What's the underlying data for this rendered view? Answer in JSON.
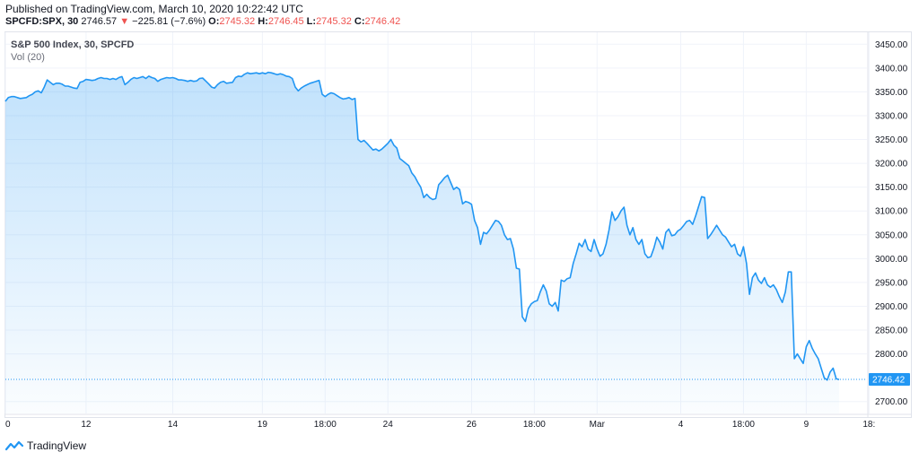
{
  "header": {
    "published": "Published on TradingView.com, March 10, 2020 10:22:42 UTC"
  },
  "quote": {
    "symbol": "SPCFD:SPX, 30",
    "last": "2746.57",
    "change": "−225.81 (−7.6%)",
    "o_label": "O:",
    "o_val": "2745.32",
    "h_label": "H:",
    "h_val": "2746.45",
    "l_label": "L:",
    "l_val": "2745.32",
    "c_label": "C:",
    "c_val": "2746.42"
  },
  "legend": {
    "title": "S&P 500 Index, 30, SPCFD",
    "vol": "Vol (20)"
  },
  "footer": {
    "brand": "TradingView"
  },
  "colors": {
    "line": "#2196f3",
    "down": "#ef5350",
    "price_tag": "#2196f3"
  },
  "chart_data": {
    "type": "area",
    "ylim": [
      2675,
      3475
    ],
    "y_ticks": [
      3450,
      3400,
      3350,
      3300,
      3250,
      3200,
      3150,
      3100,
      3050,
      3000,
      2950,
      2900,
      2850,
      2800,
      2700
    ],
    "x_ticks": [
      {
        "label": "0",
        "index": 0
      },
      {
        "label": "12",
        "index": 27
      },
      {
        "label": "14",
        "index": 56
      },
      {
        "label": "19",
        "index": 86
      },
      {
        "label": "18:00",
        "index": 107
      },
      {
        "label": "24",
        "index": 128
      },
      {
        "label": "26",
        "index": 156
      },
      {
        "label": "18:00",
        "index": 177
      },
      {
        "label": "Mar",
        "index": 198
      },
      {
        "label": "4",
        "index": 226
      },
      {
        "label": "18:00",
        "index": 247
      },
      {
        "label": "9",
        "index": 268
      },
      {
        "label": "18:",
        "index": 289
      }
    ],
    "last_price_label": "2746.42",
    "last_price": 2746.42,
    "series": [
      {
        "values": [
          3330,
          3338,
          3340,
          3340,
          3338,
          3336,
          3337,
          3338,
          3342,
          3345,
          3350,
          3352,
          3348,
          3360,
          3375,
          3370,
          3365,
          3368,
          3368,
          3366,
          3362,
          3362,
          3360,
          3358,
          3357,
          3370,
          3372,
          3376,
          3375,
          3374,
          3375,
          3378,
          3380,
          3378,
          3378,
          3376,
          3378,
          3376,
          3380,
          3382,
          3365,
          3370,
          3376,
          3380,
          3378,
          3380,
          3382,
          3378,
          3383,
          3380,
          3378,
          3372,
          3376,
          3378,
          3380,
          3379,
          3380,
          3378,
          3375,
          3375,
          3374,
          3372,
          3374,
          3372,
          3373,
          3378,
          3379,
          3373,
          3367,
          3360,
          3358,
          3365,
          3370,
          3372,
          3368,
          3369,
          3370,
          3380,
          3383,
          3382,
          3387,
          3390,
          3388,
          3389,
          3390,
          3388,
          3390,
          3388,
          3391,
          3390,
          3388,
          3386,
          3388,
          3386,
          3383,
          3382,
          3378,
          3360,
          3352,
          3358,
          3362,
          3365,
          3368,
          3370,
          3372,
          3374,
          3345,
          3340,
          3345,
          3348,
          3346,
          3342,
          3338,
          3335,
          3336,
          3338,
          3334,
          3336,
          3250,
          3245,
          3248,
          3242,
          3235,
          3228,
          3230,
          3226,
          3230,
          3236,
          3242,
          3250,
          3238,
          3232,
          3210,
          3205,
          3200,
          3195,
          3180,
          3172,
          3160,
          3150,
          3128,
          3135,
          3128,
          3124,
          3126,
          3155,
          3162,
          3170,
          3175,
          3160,
          3145,
          3150,
          3145,
          3115,
          3120,
          3118,
          3114,
          3080,
          3065,
          3030,
          3055,
          3052,
          3060,
          3070,
          3080,
          3078,
          3070,
          3050,
          3040,
          3042,
          3020,
          2980,
          2978,
          2878,
          2868,
          2895,
          2905,
          2910,
          2912,
          2930,
          2945,
          2932,
          2905,
          2900,
          2908,
          2890,
          2955,
          2952,
          2958,
          2960,
          2990,
          3010,
          3032,
          3025,
          3040,
          3020,
          3015,
          3040,
          3020,
          3005,
          3010,
          3030,
          3060,
          3098,
          3080,
          3088,
          3100,
          3108,
          3070,
          3050,
          3065,
          3040,
          3030,
          3040,
          3010,
          3002,
          3004,
          3022,
          3045,
          3035,
          3020,
          3055,
          3062,
          3048,
          3050,
          3058,
          3062,
          3070,
          3078,
          3080,
          3072,
          3090,
          3110,
          3130,
          3128,
          3042,
          3050,
          3060,
          3070,
          3060,
          3050,
          3045,
          3035,
          3025,
          3030,
          3010,
          3005,
          3025,
          2990,
          2925,
          2960,
          2970,
          2955,
          2948,
          2960,
          2945,
          2940,
          2945,
          2935,
          2920,
          2908,
          2930,
          2972,
          2972,
          2790,
          2800,
          2790,
          2780,
          2815,
          2828,
          2812,
          2800,
          2790,
          2770,
          2750,
          2745,
          2762,
          2770,
          2748,
          2746
        ]
      }
    ]
  }
}
